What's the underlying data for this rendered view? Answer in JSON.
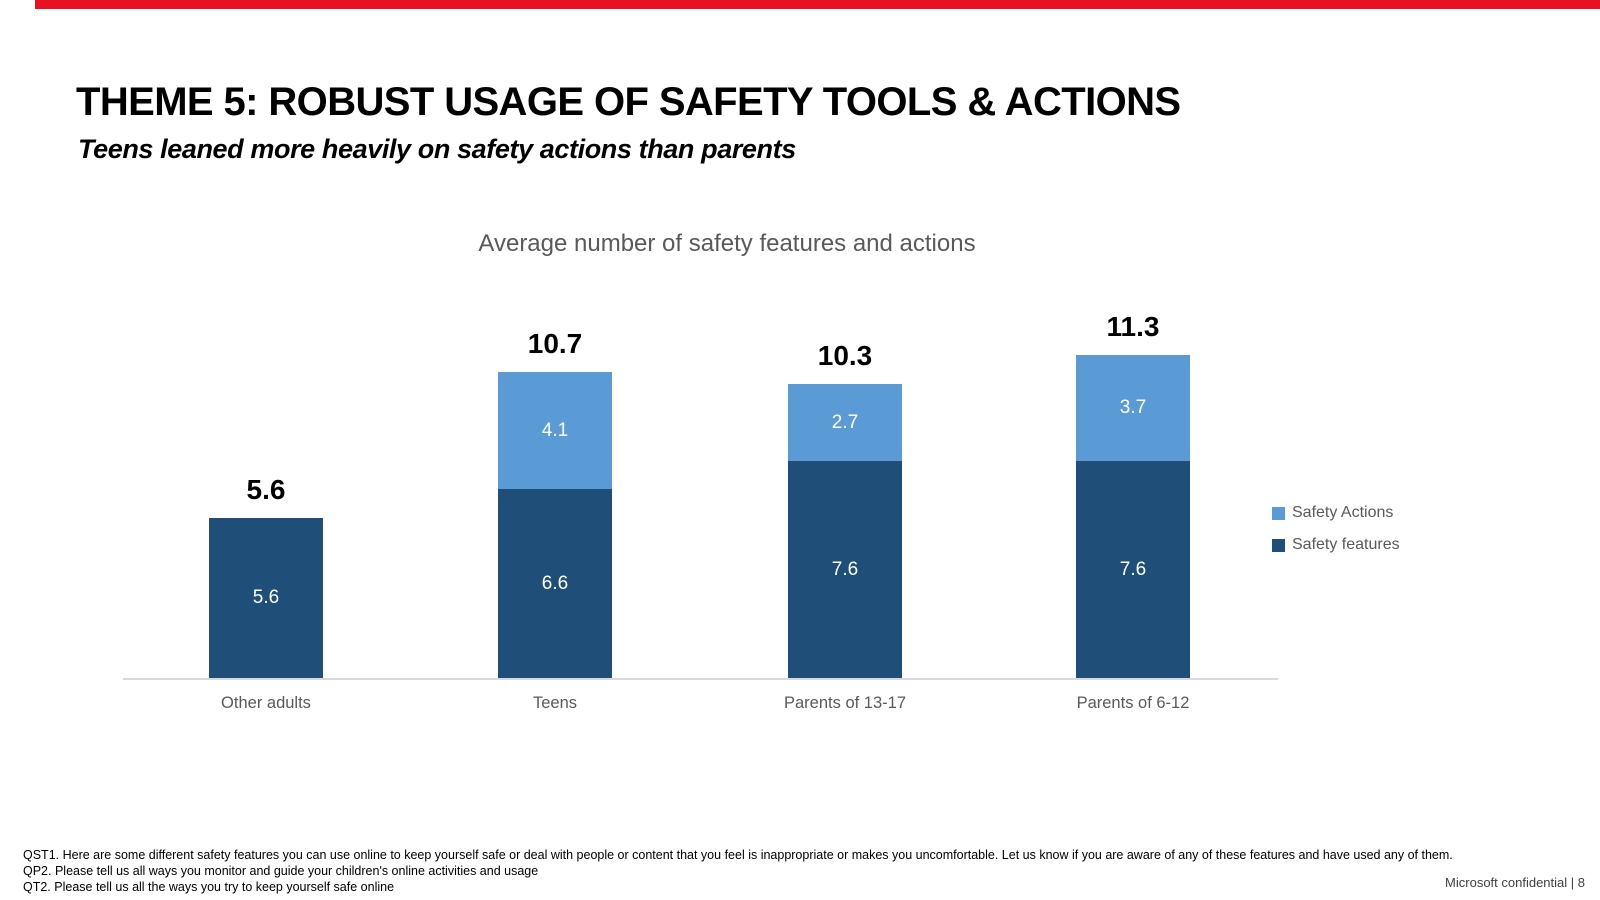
{
  "slide": {
    "title": "THEME 5: ROBUST USAGE OF SAFETY TOOLS & ACTIONS",
    "subtitle": "Teens leaned more heavily on safety actions than parents",
    "accent_color": "#E81123",
    "footer_lines": [
      "QST1. Here are some different safety features you can use online to keep yourself safe or deal with people or content that you feel is inappropriate or makes you uncomfortable.   Let us know if you are aware of any of these features and have used any of them.",
      "QP2. Please tell us all ways you monitor and guide your children's online activities and usage",
      "QT2. Please tell us all the ways you try to keep yourself safe online"
    ],
    "confidential": "Microsoft confidential | 8"
  },
  "chart_data": {
    "type": "bar",
    "stacked": true,
    "title": "Average number of safety features and actions",
    "categories": [
      "Other adults",
      "Teens",
      "Parents of 13-17",
      "Parents of 6-12"
    ],
    "series": [
      {
        "name": "Safety features",
        "color": "#1F4E79",
        "values": [
          5.6,
          6.6,
          7.6,
          7.6
        ]
      },
      {
        "name": "Safety Actions",
        "color": "#5B9BD5",
        "values": [
          0,
          4.1,
          2.7,
          3.7
        ]
      }
    ],
    "totals": [
      5.6,
      10.7,
      10.3,
      11.3
    ],
    "legend": [
      {
        "label": "Safety Actions",
        "color": "#5B9BD5"
      },
      {
        "label": "Safety features",
        "color": "#1F4E79"
      }
    ],
    "ylim": [
      0,
      12
    ],
    "grid": false,
    "legend_position": "right",
    "axis_color": "#D9D9D9"
  }
}
